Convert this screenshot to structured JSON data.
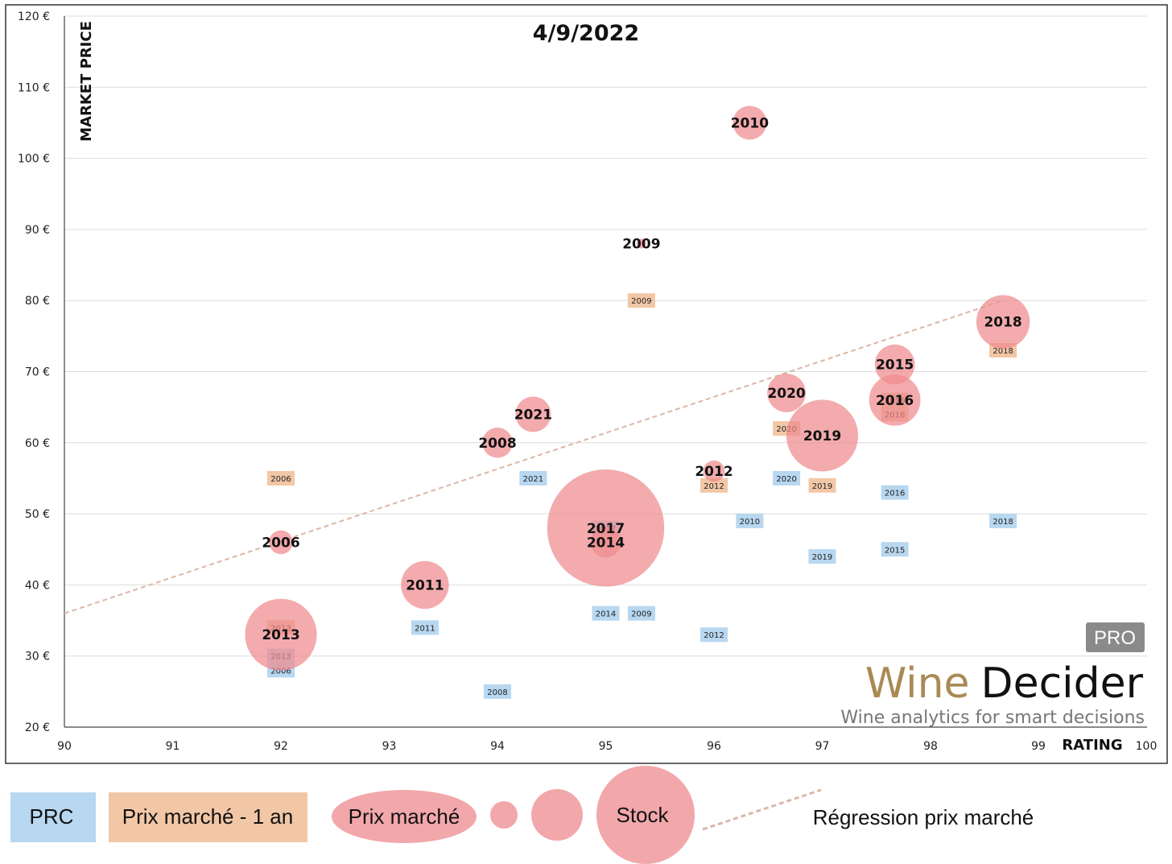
{
  "chart_data": {
    "type": "scatter",
    "title": "4/9/2022",
    "xlabel": "RATING",
    "ylabel": "MARKET PRICE",
    "xlim": [
      90,
      100
    ],
    "ylim": [
      20,
      120
    ],
    "x_ticks": [
      "90",
      "91",
      "92",
      "93",
      "94",
      "95",
      "96",
      "97",
      "98",
      "99",
      "100"
    ],
    "y_ticks": [
      "20 €",
      "30 €",
      "40 €",
      "50 €",
      "60 €",
      "70 €",
      "80 €",
      "90 €",
      "100 €",
      "110 €",
      "120 €"
    ],
    "grid": "horizontal",
    "colors": {
      "prc": "#b8d7f0",
      "prix_an": "#f2c7a6",
      "bubble": "#ee8a8f",
      "regression": "#d8b8a8"
    },
    "series": [
      {
        "name": "Prix marché",
        "kind": "bubble",
        "points": [
          {
            "label": "2010",
            "x": 96.33,
            "y": 105,
            "stock": 1
          },
          {
            "label": "2009",
            "x": 95.33,
            "y": 88,
            "stock": 0.05
          },
          {
            "label": "2018",
            "x": 98.67,
            "y": 77,
            "stock": 2.5
          },
          {
            "label": "2015",
            "x": 97.67,
            "y": 71,
            "stock": 1.4
          },
          {
            "label": "2020",
            "x": 96.67,
            "y": 67,
            "stock": 1.3
          },
          {
            "label": "2016",
            "x": 97.67,
            "y": 66,
            "stock": 2.3
          },
          {
            "label": "2021",
            "x": 94.33,
            "y": 64,
            "stock": 1.1
          },
          {
            "label": "2019",
            "x": 97,
            "y": 61,
            "stock": 4.5
          },
          {
            "label": "2008",
            "x": 94,
            "y": 60,
            "stock": 0.8
          },
          {
            "label": "2012",
            "x": 96,
            "y": 56,
            "stock": 0.4
          },
          {
            "label": "2017",
            "x": 95,
            "y": 48,
            "stock": 12
          },
          {
            "label": "2014",
            "x": 95,
            "y": 46,
            "stock": 0.8
          },
          {
            "label": "2006",
            "x": 92,
            "y": 46,
            "stock": 0.5
          },
          {
            "label": "2011",
            "x": 93.33,
            "y": 40,
            "stock": 2
          },
          {
            "label": "2013",
            "x": 92,
            "y": 33,
            "stock": 4.5
          }
        ]
      },
      {
        "name": "Prix marché - 1 an",
        "kind": "tag",
        "points": [
          {
            "label": "2009",
            "x": 95.33,
            "y": 80
          },
          {
            "label": "2018",
            "x": 98.67,
            "y": 73
          },
          {
            "label": "2016",
            "x": 97.67,
            "y": 66
          },
          {
            "label": "2016",
            "x": 97.67,
            "y": 64
          },
          {
            "label": "2020",
            "x": 96.67,
            "y": 62
          },
          {
            "label": "2006",
            "x": 92,
            "y": 55
          },
          {
            "label": "2012",
            "x": 96,
            "y": 54
          },
          {
            "label": "2019",
            "x": 97,
            "y": 54
          },
          {
            "label": "2013",
            "x": 92,
            "y": 34
          }
        ]
      },
      {
        "name": "PRC",
        "kind": "tag",
        "points": [
          {
            "label": "2021",
            "x": 94.33,
            "y": 55
          },
          {
            "label": "2020",
            "x": 96.67,
            "y": 55
          },
          {
            "label": "2016",
            "x": 97.67,
            "y": 53
          },
          {
            "label": "2010",
            "x": 96.33,
            "y": 49
          },
          {
            "label": "2018",
            "x": 98.67,
            "y": 49
          },
          {
            "label": "2017",
            "x": 95,
            "y": 48
          },
          {
            "label": "2015",
            "x": 97.67,
            "y": 45
          },
          {
            "label": "2019",
            "x": 97,
            "y": 44
          },
          {
            "label": "2014",
            "x": 95,
            "y": 36
          },
          {
            "label": "2009",
            "x": 95.33,
            "y": 36
          },
          {
            "label": "2011",
            "x": 93.33,
            "y": 34
          },
          {
            "label": "2012",
            "x": 96,
            "y": 33
          },
          {
            "label": "2013",
            "x": 92,
            "y": 30
          },
          {
            "label": "2006",
            "x": 92,
            "y": 28
          },
          {
            "label": "2008",
            "x": 94,
            "y": 25
          }
        ]
      },
      {
        "name": "Régression prix marché",
        "kind": "trendline",
        "points": [
          {
            "x": 90,
            "y": 36
          },
          {
            "x": 98.67,
            "y": 80
          }
        ]
      }
    ],
    "legend": {
      "placement": "bottom",
      "items": [
        "PRC",
        "Prix marché - 1 an",
        "Prix marché",
        "Stock",
        "Régression prix marché"
      ]
    }
  },
  "logo": {
    "badge": "PRO",
    "brand_a": "Wine",
    "brand_b": "Decider",
    "tagline": "Wine analytics for smart decisions",
    "colors": {
      "brand_a": "#a88a52",
      "brand_b": "#111111",
      "badge_bg": "#8a8a8a"
    }
  }
}
